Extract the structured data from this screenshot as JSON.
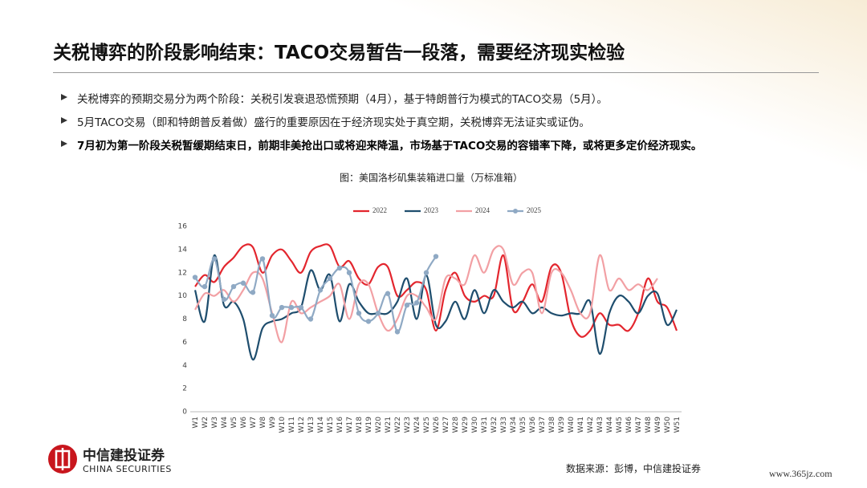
{
  "header": {
    "title": "关税博弈的阶段影响结束：TACO交易暂告一段落，需要经济现实检验"
  },
  "bullets": [
    "关税博弈的预期交易分为两个阶段：关税引发衰退恐慌预期（4月），基于特朗普行为模式的TACO交易（5月）。",
    "5月TACO交易（即和特朗普反着做）盛行的重要原因在于经济现实处于真空期，关税博弈无法证实或证伪。",
    "7月初为第一阶段关税暂缓期结束日，前期非美抢出口或将迎来降温，市场基于TACO交易的容错率下降，或将更多定价经济现实。"
  ],
  "chart_data": {
    "type": "line",
    "title": "图：美国洛杉矶集装箱进口量（万标准箱）",
    "categories": [
      "W1",
      "W2",
      "W3",
      "W4",
      "W5",
      "W6",
      "W7",
      "W8",
      "W9",
      "W10",
      "W11",
      "W12",
      "W13",
      "W14",
      "W15",
      "W16",
      "W17",
      "W18",
      "W19",
      "W20",
      "W21",
      "W22",
      "W23",
      "W24",
      "W25",
      "W26",
      "W27",
      "W28",
      "W29",
      "W30",
      "W31",
      "W32",
      "W33",
      "W34",
      "W35",
      "W36",
      "W37",
      "W38",
      "W39",
      "W40",
      "W41",
      "W42",
      "W43",
      "W44",
      "W45",
      "W46",
      "W47",
      "W48",
      "W49",
      "W50",
      "W51"
    ],
    "series": [
      {
        "name": "2022",
        "color": "#e3262e",
        "values": [
          10.8,
          11.8,
          11.2,
          12.5,
          13.3,
          14.3,
          14.2,
          12.0,
          13.5,
          14.0,
          13.0,
          12.0,
          13.8,
          14.3,
          14.3,
          12.5,
          13.0,
          11.5,
          11.0,
          12.5,
          12.5,
          10.0,
          10.5,
          11.2,
          10.5,
          7.0,
          10.5,
          12.0,
          10.0,
          9.5,
          10.0,
          10.0,
          13.5,
          8.8,
          9.5,
          11.0,
          9.5,
          12.5,
          12.0,
          8.0,
          6.5,
          7.0,
          8.5,
          7.5,
          7.5,
          7.0,
          8.5,
          11.5,
          9.5,
          9.0,
          7.0
        ]
      },
      {
        "name": "2023",
        "color": "#1f4e6e",
        "values": [
          10.5,
          7.8,
          13.5,
          9.2,
          9.5,
          8.0,
          4.5,
          7.2,
          7.8,
          8.0,
          8.5,
          9.0,
          12.2,
          10.5,
          11.8,
          7.8,
          11.0,
          9.5,
          8.5,
          8.5,
          8.5,
          9.5,
          11.5,
          8.0,
          11.8,
          7.5,
          7.8,
          9.5,
          8.0,
          10.5,
          8.5,
          10.5,
          9.5,
          9.0,
          9.5,
          8.5,
          9.0,
          8.5,
          8.3,
          8.5,
          8.5,
          9.5,
          5.0,
          8.5,
          10.0,
          9.5,
          8.5,
          10.0,
          10.2,
          7.5,
          8.8
        ]
      },
      {
        "name": "2024",
        "color": "#f2a0a4",
        "values": [
          8.8,
          10.2,
          10.0,
          10.5,
          9.5,
          10.5,
          12.0,
          11.5,
          8.5,
          6.0,
          9.5,
          8.5,
          9.0,
          9.5,
          10.0,
          11.0,
          8.0,
          11.0,
          11.0,
          8.5,
          7.0,
          8.0,
          10.0,
          10.0,
          9.0,
          8.0,
          11.5,
          11.5,
          11.0,
          13.5,
          12.0,
          14.0,
          14.0,
          11.0,
          12.0,
          12.0,
          8.5,
          12.0,
          12.0,
          10.5,
          8.5,
          8.5,
          13.5,
          10.5,
          11.5,
          10.5,
          11.0,
          10.5,
          11.5,
          null,
          null
        ]
      },
      {
        "name": "2025",
        "color": "#8fa9c4",
        "marker": true,
        "values": [
          11.6,
          10.8,
          13.2,
          9.7,
          10.8,
          11.1,
          10.3,
          13.2,
          8.3,
          9.0,
          9.0,
          9.0,
          8.0,
          10.5,
          11.5,
          12.4,
          12.0,
          8.5,
          7.8,
          8.5,
          10.2,
          6.9,
          9.2,
          9.4,
          12.0,
          13.4,
          null,
          null,
          null,
          null,
          null,
          null,
          null,
          null,
          null,
          null,
          null,
          null,
          null,
          null,
          null,
          null,
          null,
          null,
          null,
          null,
          null,
          null,
          null,
          null,
          null
        ]
      }
    ],
    "ylim": [
      0,
      16
    ],
    "yticks": [
      0,
      2,
      4,
      6,
      8,
      10,
      12,
      14,
      16
    ],
    "legend": "top"
  },
  "footer": {
    "source": "数据来源：彭博，中信建投证券",
    "logo_cn": "中信建投证券",
    "logo_en": "CHINA SECURITIES",
    "watermark": "www.365jz.com"
  }
}
